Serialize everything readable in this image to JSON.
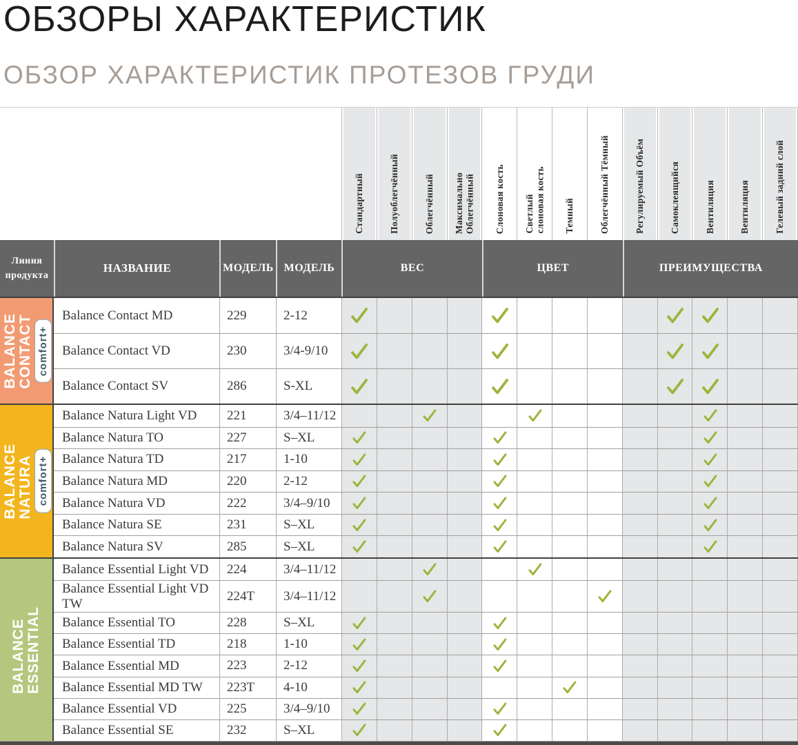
{
  "page": {
    "title": "ОБЗОРЫ ХАРАКТЕРИСТИК",
    "subtitle": "ОБЗОР ХАРАКТЕРИСТИК ПРОТЕЗОВ ГРУДИ"
  },
  "colors": {
    "title_text": "#1D1D1B",
    "subtitle_text": "#A69D96",
    "header_dark_bg": "#656565",
    "header_text": "#FFFFFF",
    "shaded_column_bg": "#E6E7E8",
    "grid_line": "#ABABAB",
    "group_divider": "#3F3F3F",
    "check_green": "#9CB53C",
    "badge_text": "#3D5A6B",
    "badge_bg": "#FFFFFF"
  },
  "table": {
    "headers": {
      "product_line": "Линия\nпродукта",
      "name": "НАЗВАНИЕ",
      "model": "МОДЕЛЬ",
      "model2": "МОДЕЛЬ",
      "weight": "ВЕС",
      "color": "ЦВЕТ",
      "benefits": "ПРЕИМУЩЕСТВА"
    },
    "columns": [
      {
        "label": "Стандартный",
        "category": "ВЕС"
      },
      {
        "label": "Полуоблегчённый",
        "category": "ВЕС"
      },
      {
        "label": "Облегчённый",
        "category": "ВЕС"
      },
      {
        "label": "Максимально\nОблегчённый",
        "category": "ВЕС"
      },
      {
        "label": "Слоновая кость",
        "category": "ЦВЕТ"
      },
      {
        "label": "Светлый\nслоновая кость",
        "category": "ЦВЕТ"
      },
      {
        "label": "Темный",
        "category": "ЦВЕТ"
      },
      {
        "label": "Облегчённый Тёмный",
        "category": "ЦВЕТ"
      },
      {
        "label": "Регулируемый Объём",
        "category": "ПРЕИМУЩЕСТВА"
      },
      {
        "label": "Самоклеящийся",
        "category": "ПРЕИМУЩЕСТВА"
      },
      {
        "label": "Вентиляция",
        "category": "ПРЕИМУЩЕСТВА"
      },
      {
        "label": "Вентиляция",
        "category": "ПРЕИМУЩЕСТВА"
      },
      {
        "label": "Гелевый задний слой",
        "category": "ПРЕИМУЩЕСТВА"
      }
    ],
    "groups": [
      {
        "key": "contact",
        "label": "BALANCE\nCONTACT",
        "badge": "comfort+",
        "color": "#F29B73",
        "rows": [
          {
            "name": "Balance Contact MD",
            "model": "229",
            "size": "2-12",
            "checks": [
              1,
              5,
              10,
              11
            ]
          },
          {
            "name": "Balance Contact VD",
            "model": "230",
            "size": "3/4-9/10",
            "checks": [
              1,
              5,
              10,
              11
            ]
          },
          {
            "name": "Balance Contact SV",
            "model": "286",
            "size": "S-XL",
            "checks": [
              1,
              5,
              10,
              11
            ]
          }
        ]
      },
      {
        "key": "natura",
        "label": "BALANCE\nNATURA",
        "badge": "comfort+",
        "color": "#F3B51E",
        "rows": [
          {
            "name": "Balance Natura Light VD",
            "model": "221",
            "size": "3/4–11/12",
            "checks": [
              3,
              6,
              11
            ]
          },
          {
            "name": "Balance Natura TO",
            "model": "227",
            "size": "S–XL",
            "checks": [
              1,
              5,
              11
            ]
          },
          {
            "name": "Balance Natura TD",
            "model": "217",
            "size": "1-10",
            "checks": [
              1,
              5,
              11
            ]
          },
          {
            "name": "Balance Natura MD",
            "model": "220",
            "size": "2-12",
            "checks": [
              1,
              5,
              11
            ]
          },
          {
            "name": "Balance Natura VD",
            "model": "222",
            "size": "3/4–9/10",
            "checks": [
              1,
              5,
              11
            ]
          },
          {
            "name": "Balance Natura SE",
            "model": "231",
            "size": "S–XL",
            "checks": [
              1,
              5,
              11
            ]
          },
          {
            "name": "Balance Natura SV",
            "model": "285",
            "size": "S–XL",
            "checks": [
              1,
              5,
              11
            ]
          }
        ]
      },
      {
        "key": "essential",
        "label": "BALANCE\nESSENTIAL",
        "badge": null,
        "color": "#B5C67E",
        "rows": [
          {
            "name": "Balance Essential Light VD",
            "model": "224",
            "size": "3/4–11/12",
            "checks": [
              3,
              6
            ]
          },
          {
            "name": "Balance Essential Light VD TW",
            "model": "224T",
            "size": "3/4–11/12",
            "checks": [
              3,
              8
            ]
          },
          {
            "name": "Balance Essential TO",
            "model": "228",
            "size": "S–XL",
            "checks": [
              1,
              5
            ]
          },
          {
            "name": "Balance Essential TD",
            "model": "218",
            "size": "1-10",
            "checks": [
              1,
              5
            ]
          },
          {
            "name": "Balance Essential MD",
            "model": "223",
            "size": "2-12",
            "checks": [
              1,
              5
            ]
          },
          {
            "name": "Balance Essential MD TW",
            "model": "223T",
            "size": "4-10",
            "checks": [
              1,
              7
            ]
          },
          {
            "name": "Balance Essential VD",
            "model": "225",
            "size": "3/4–9/10",
            "checks": [
              1,
              5
            ]
          },
          {
            "name": "Balance Essential SE",
            "model": "232",
            "size": "S–XL",
            "checks": [
              1,
              5
            ]
          }
        ]
      }
    ]
  }
}
